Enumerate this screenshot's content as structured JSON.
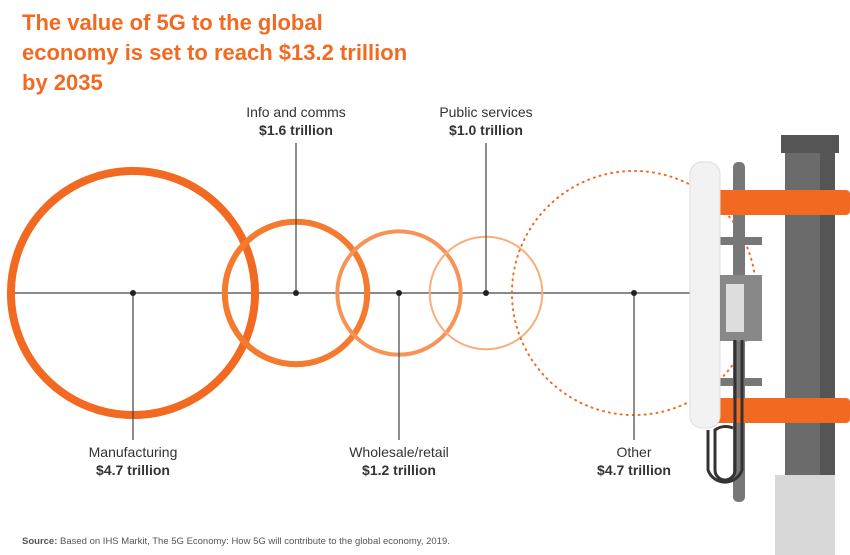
{
  "chart_data": {
    "type": "bubble",
    "title": "The value of 5G to the global economy is set to reach $13.2 trillion by 2035",
    "categories": [
      "Manufacturing",
      "Info and comms",
      "Wholesale/retail",
      "Public services",
      "Other"
    ],
    "values": [
      4.7,
      1.6,
      1.2,
      1.0,
      4.7
    ],
    "value_labels": [
      "$4.7 trillion",
      "$1.6 trillion",
      "$1.2 trillion",
      "$1.0 trillion",
      "$4.7 trillion"
    ],
    "colors": [
      "#f26a21",
      "#f47a2e",
      "#f69457",
      "#f8ae7c",
      "#f26a21"
    ],
    "source_label": "Source:",
    "source": "Based on IHS Markit, The 5G Economy: How 5G will contribute to the global economy, 2019."
  }
}
